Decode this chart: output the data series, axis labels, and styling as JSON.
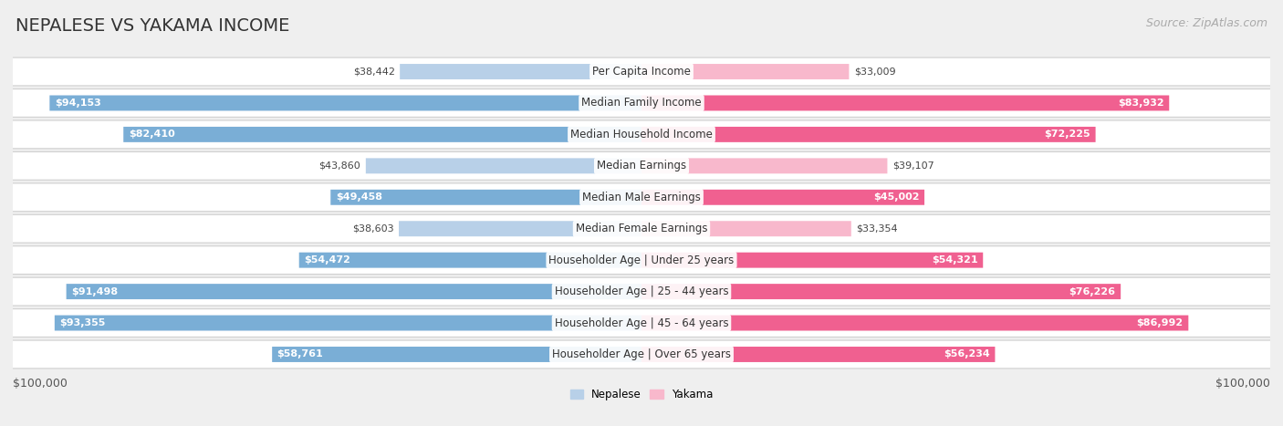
{
  "title": "NEPALESE VS YAKAMA INCOME",
  "source": "Source: ZipAtlas.com",
  "categories": [
    "Per Capita Income",
    "Median Family Income",
    "Median Household Income",
    "Median Earnings",
    "Median Male Earnings",
    "Median Female Earnings",
    "Householder Age | Under 25 years",
    "Householder Age | 25 - 44 years",
    "Householder Age | 45 - 64 years",
    "Householder Age | Over 65 years"
  ],
  "nepalese_values": [
    38442,
    94153,
    82410,
    43860,
    49458,
    38603,
    54472,
    91498,
    93355,
    58761
  ],
  "yakama_values": [
    33009,
    83932,
    72225,
    39107,
    45002,
    33354,
    54321,
    76226,
    86992,
    56234
  ],
  "max_value": 100000,
  "nepalese_color_light": "#b8d0e8",
  "nepalese_color_dark": "#7aaed6",
  "yakama_color_light": "#f8b8cc",
  "yakama_color_dark": "#f06090",
  "nepalese_label": "Nepalese",
  "yakama_label": "Yakama",
  "background_color": "#efefef",
  "row_bg_color": "#ffffff",
  "title_fontsize": 14,
  "source_fontsize": 9,
  "label_fontsize": 8.5,
  "value_fontsize": 8,
  "axis_label_fontsize": 9,
  "threshold_inside": 0.45
}
